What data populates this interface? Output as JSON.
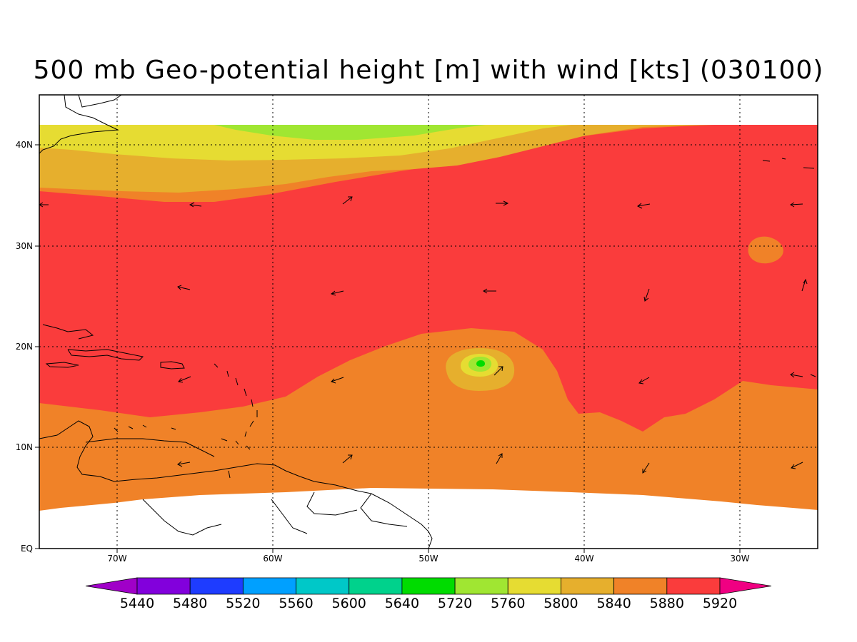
{
  "title": "500 mb Geo-potential height [m] with wind [kts] (030100)",
  "x_axis": {
    "ticks": [
      "70W",
      "60W",
      "50W",
      "40W",
      "30W"
    ],
    "range": [
      "75W",
      "25W"
    ]
  },
  "y_axis": {
    "ticks": [
      "EQ",
      "10N",
      "20N",
      "30N",
      "40N"
    ],
    "range": [
      "0N",
      "45N"
    ]
  },
  "colorbar": {
    "labels": [
      "5440",
      "5480",
      "5520",
      "5560",
      "5600",
      "5640",
      "5720",
      "5760",
      "5800",
      "5840",
      "5880",
      "5920"
    ],
    "colors": [
      "#a000c8",
      "#8200dc",
      "#1e3cff",
      "#00a0ff",
      "#00c8c8",
      "#00d28c",
      "#00dc00",
      "#a0e632",
      "#e6dc32",
      "#e6af2d",
      "#f08228",
      "#fa3c3c",
      "#f00082"
    ]
  },
  "fill_colors": {
    "h5920": "#fa3c3c",
    "h5880": "#f08228",
    "h5840": "#e6af2d",
    "h5800": "#e6dc32",
    "h5760": "#a0e632",
    "h5720": "#00dc00",
    "coast": "#000000",
    "grid": "#000000"
  },
  "map_features": [
    "gulf-of-mexico-islands",
    "greater-antilles",
    "lesser-antilles",
    "south-america-coast",
    "north-america-coast"
  ],
  "wind_vectors_note_icon": "arrow-icon"
}
